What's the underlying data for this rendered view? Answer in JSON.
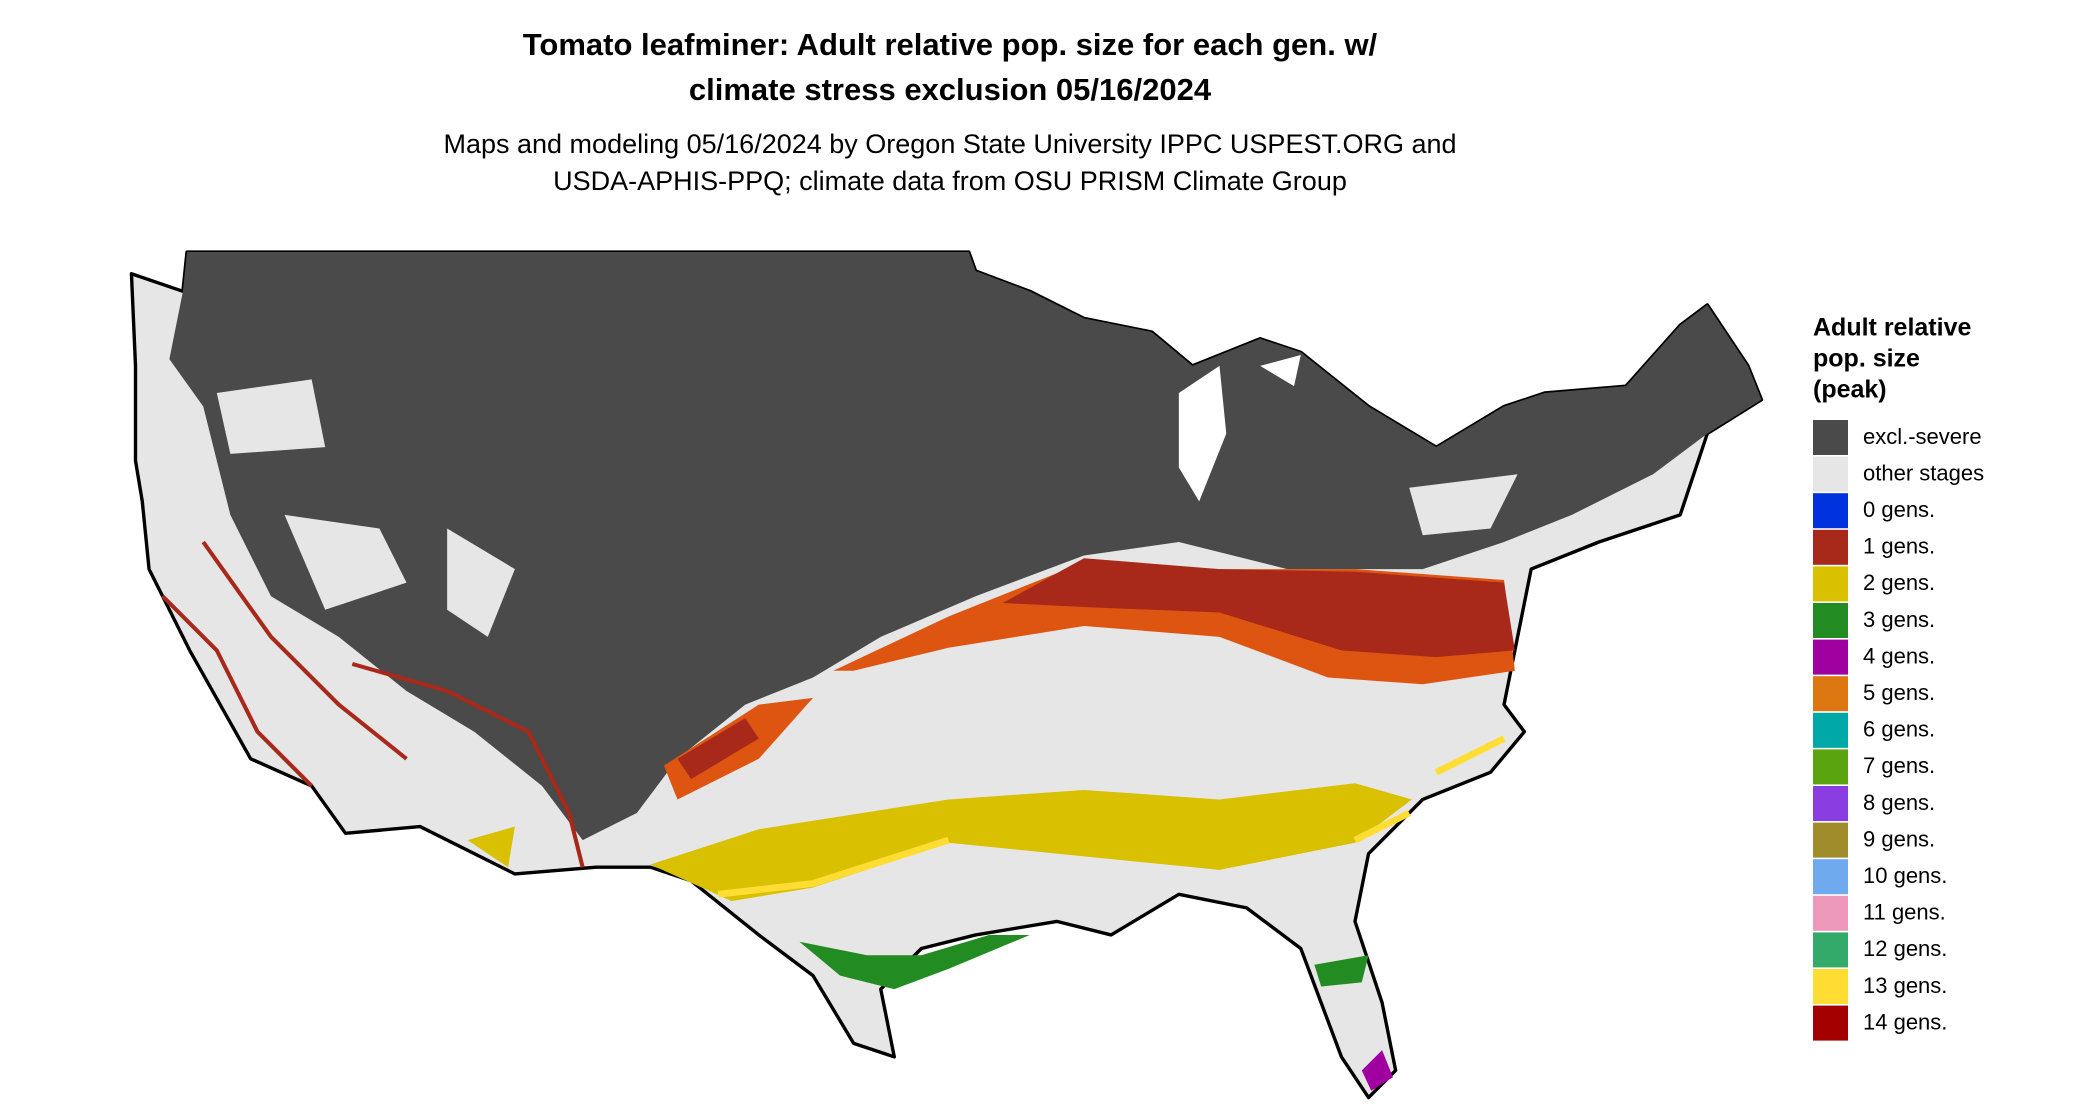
{
  "header": {
    "title": [
      "Tomato leafminer: Adult relative pop. size for each gen. w/",
      "climate stress exclusion 05/16/2024"
    ],
    "subtitle": [
      "Maps and modeling 05/16/2024 by Oregon State University IPPC USPEST.ORG and",
      "USDA-APHIS-PPQ; climate data from OSU PRISM Climate Group"
    ]
  },
  "legend": {
    "title": [
      "Adult relative",
      "pop. size",
      "(peak)"
    ],
    "items": [
      {
        "label": "excl.-severe",
        "color": "#4a4a4a"
      },
      {
        "label": "other stages",
        "color": "#e6e6e6"
      },
      {
        "label": "0 gens.",
        "color": "#0033dd"
      },
      {
        "label": "1 gens.",
        "color": "#a8281a"
      },
      {
        "label": "2 gens.",
        "color": "#d9c000"
      },
      {
        "label": "3 gens.",
        "color": "#228b22"
      },
      {
        "label": "4 gens.",
        "color": "#a000a0"
      },
      {
        "label": "5 gens.",
        "color": "#dd7711"
      },
      {
        "label": "6 gens.",
        "color": "#00a8a8"
      },
      {
        "label": "7 gens.",
        "color": "#5aa50f"
      },
      {
        "label": "8 gens.",
        "color": "#8a3de0"
      },
      {
        "label": "9 gens.",
        "color": "#a08c2a"
      },
      {
        "label": "10 gens.",
        "color": "#70aaee"
      },
      {
        "label": "11 gens.",
        "color": "#ee99bb"
      },
      {
        "label": "12 gens.",
        "color": "#33aa6a"
      },
      {
        "label": "13 gens.",
        "color": "#ffdd33"
      },
      {
        "label": "14 gens.",
        "color": "#a50000"
      }
    ]
  }
}
